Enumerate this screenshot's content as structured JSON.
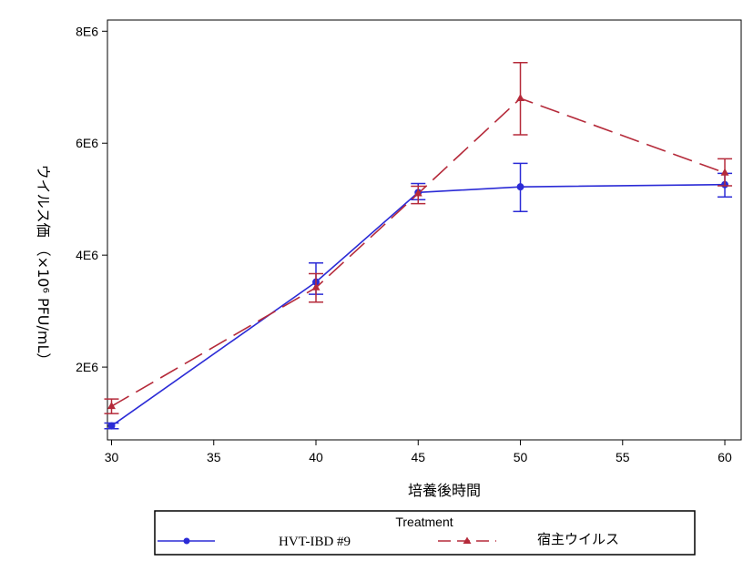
{
  "chart_data": {
    "type": "line",
    "xlabel": "培養後時間",
    "ylabel": "ウイルス価 （×10⁶ PFU/mL）",
    "x_ticks": [
      30,
      35,
      40,
      45,
      50,
      55,
      60
    ],
    "y_ticks": [
      "2E6",
      "4E6",
      "6E6",
      "8E6"
    ],
    "y_tick_values": [
      2000000,
      4000000,
      6000000,
      8000000
    ],
    "xlim": [
      29.8,
      60.8
    ],
    "ylim": [
      700000,
      8200000
    ],
    "legend": {
      "title": "Treatment",
      "placement": "bottom"
    },
    "series": [
      {
        "name": "HVT-IBD #9",
        "color": "#2b2bd6",
        "line_style": "solid",
        "marker": "circle",
        "x": [
          30,
          40,
          45,
          50,
          60
        ],
        "y": [
          950000,
          3520000,
          5120000,
          5220000,
          5260000
        ],
        "err_low": [
          900000,
          3300000,
          4990000,
          4780000,
          5040000
        ],
        "err_high": [
          1000000,
          3860000,
          5280000,
          5640000,
          5460000
        ]
      },
      {
        "name": "宿主ウイルス",
        "color": "#b52a3a",
        "line_style": "dashed",
        "marker": "triangle",
        "x": [
          30,
          40,
          45,
          50,
          60
        ],
        "y": [
          1300000,
          3420000,
          5100000,
          6800000,
          5470000
        ],
        "err_low": [
          1170000,
          3160000,
          4920000,
          6150000,
          5240000
        ],
        "err_high": [
          1430000,
          3670000,
          5230000,
          7440000,
          5720000
        ]
      }
    ]
  }
}
